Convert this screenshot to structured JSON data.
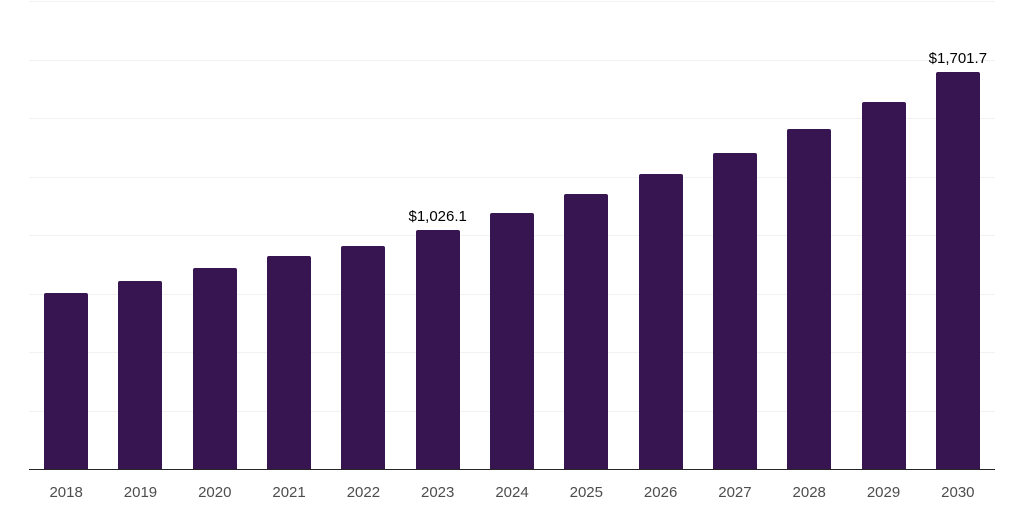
{
  "chart_data": {
    "type": "bar",
    "title": "",
    "xlabel": "",
    "ylabel": "",
    "categories": [
      "2018",
      "2019",
      "2020",
      "2021",
      "2022",
      "2023",
      "2024",
      "2025",
      "2026",
      "2027",
      "2028",
      "2029",
      "2030"
    ],
    "values": [
      758,
      808,
      864,
      913,
      959,
      1026.1,
      1098,
      1179,
      1263,
      1356,
      1456,
      1574,
      1701.7
    ],
    "data_labels": {
      "2023": "$1,026.1",
      "2030": "$1,701.7"
    },
    "ylim": [
      0,
      2000
    ],
    "grid_step": 250,
    "grid": "on",
    "legend": "none",
    "y_tick_labels_visible": false,
    "colors": {
      "bar": "#361550",
      "gridline": "#f2f2f2",
      "axis_line": "#262626",
      "tick_label": "#4d4d4d",
      "data_label": "#000000",
      "background": "#ffffff"
    }
  }
}
